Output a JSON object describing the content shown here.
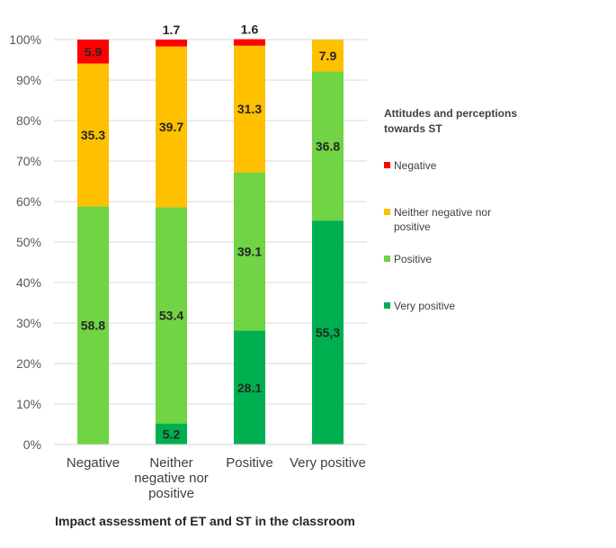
{
  "chart_data": {
    "type": "bar",
    "stacked": true,
    "categories": [
      "Negative",
      "Neither negative nor positive",
      "Positive",
      "Very positive"
    ],
    "category_lines": [
      [
        "Negative"
      ],
      [
        "Neither",
        "negative nor",
        "positive"
      ],
      [
        "Positive"
      ],
      [
        "Very positive"
      ]
    ],
    "series": [
      {
        "name": "Very positive",
        "color": "#00b050",
        "values": [
          0,
          5.2,
          28.1,
          55.3
        ],
        "labels": [
          "",
          "5.2",
          "28.1",
          "55,3"
        ]
      },
      {
        "name": "Positive",
        "color": "#70d444",
        "values": [
          58.8,
          53.4,
          39.1,
          36.8
        ],
        "labels": [
          "58.8",
          "53.4",
          "39.1",
          "36.8"
        ]
      },
      {
        "name": "Neither negative nor positive",
        "color": "#ffc000",
        "values": [
          35.3,
          39.7,
          31.3,
          7.9
        ],
        "labels": [
          "35.3",
          "39.7",
          "31.3",
          "7.9"
        ]
      },
      {
        "name": "Negative",
        "color": "#ff0000",
        "values": [
          5.9,
          1.7,
          1.6,
          0
        ],
        "labels": [
          "5.9",
          "1.7",
          "1.6",
          ""
        ]
      }
    ],
    "yticks": [
      "0%",
      "10%",
      "20%",
      "30%",
      "40%",
      "50%",
      "60%",
      "70%",
      "80%",
      "90%",
      "100%"
    ],
    "ylim": [
      0,
      100
    ],
    "xlabel": "Impact assessment of ET and ST in the classroom",
    "ylabel": "",
    "grid": true,
    "legend_position": "right",
    "legend": {
      "title": "Attitudes and perceptions towards ST",
      "items": [
        {
          "name": "Negative",
          "color": "#ff0000"
        },
        {
          "name": "Neither negative nor positive",
          "color": "#ffc000"
        },
        {
          "name": "Positive",
          "color": "#70d444"
        },
        {
          "name": "Very positive",
          "color": "#00b050"
        }
      ]
    }
  }
}
